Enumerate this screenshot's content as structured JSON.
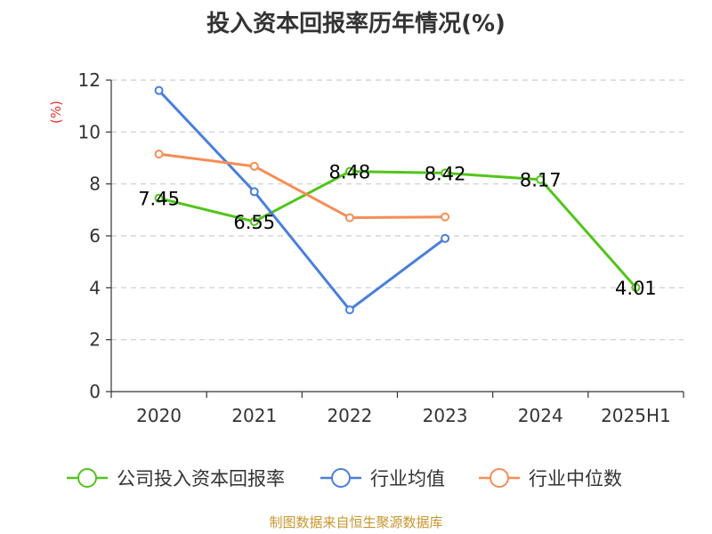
{
  "chart_data": {
    "type": "line",
    "title": "投入资本回报率历年情况(%)",
    "ylabel": "(%)",
    "categories": [
      "2020",
      "2021",
      "2022",
      "2023",
      "2024",
      "2025H1"
    ],
    "ylim": [
      0,
      12
    ],
    "yticks": [
      0,
      2,
      4,
      6,
      8,
      10,
      12
    ],
    "grid": true,
    "legend_position": "bottom",
    "series": [
      {
        "name": "公司投入资本回报率",
        "color": "#52c41a",
        "show_labels": true,
        "values": [
          7.45,
          6.55,
          8.48,
          8.42,
          8.17,
          4.01
        ]
      },
      {
        "name": "行业均值",
        "color": "#4a7fdc",
        "show_labels": false,
        "values": [
          11.6,
          7.7,
          3.15,
          5.9,
          null,
          null
        ]
      },
      {
        "name": "行业中位数",
        "color": "#f68d55",
        "show_labels": false,
        "values": [
          9.15,
          8.68,
          6.7,
          6.73,
          null,
          null
        ]
      }
    ]
  },
  "source": "制图数据来自恒生聚源数据库"
}
